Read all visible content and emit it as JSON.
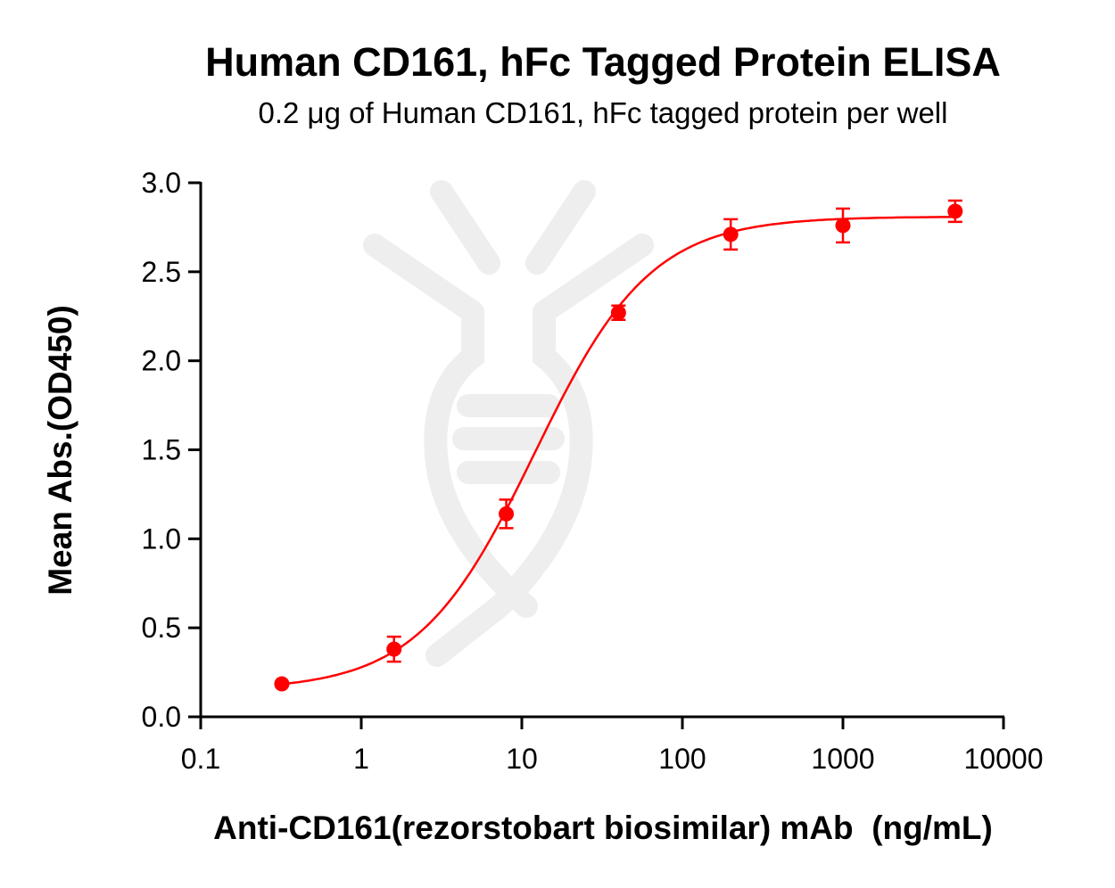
{
  "chart_data": {
    "type": "scatter",
    "title": "Human CD161, hFc Tagged Protein ELISA",
    "subtitle": "0.2 μg of Human CD161, hFc tagged protein per well",
    "xlabel": "Anti-CD161(rezorstobart biosimilar) mAb  (ng/mL)",
    "ylabel": "Mean Abs.(OD450)",
    "xscale": "log",
    "xlim": [
      0.1,
      10000
    ],
    "ylim": [
      0,
      3.0
    ],
    "xticks": [
      "0.1",
      "1",
      "10",
      "100",
      "1000",
      "10000"
    ],
    "yticks": [
      "0.0",
      "0.5",
      "1.0",
      "1.5",
      "2.0",
      "2.5",
      "3.0"
    ],
    "grid": false,
    "color": "#ff0000",
    "series": [
      {
        "x": [
          0.32,
          1.6,
          8,
          40,
          200,
          1000,
          5000
        ],
        "y": [
          0.185,
          0.38,
          1.14,
          2.27,
          2.71,
          2.76,
          2.84
        ],
        "error": [
          0.01,
          0.07,
          0.08,
          0.04,
          0.085,
          0.095,
          0.06
        ]
      }
    ],
    "fit": {
      "model": "4PL",
      "bottom": 0.15,
      "top": 2.81,
      "ec50": 12,
      "hill": 1.2
    }
  }
}
